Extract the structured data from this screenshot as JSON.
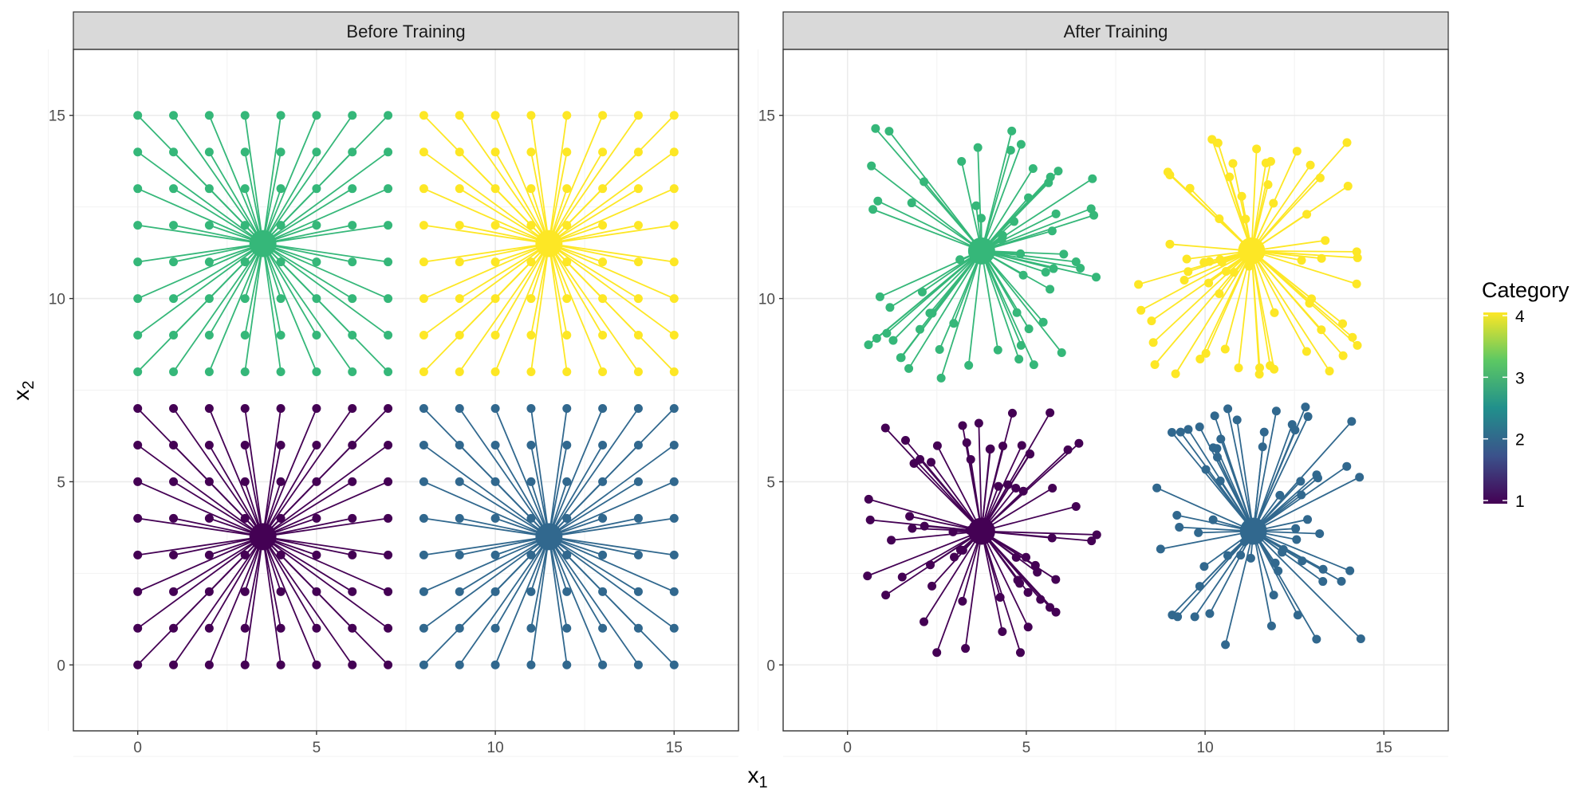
{
  "chart_data": {
    "type": "scatter",
    "facets": [
      {
        "title": "Before Training",
        "points": [
          {
            "category": 1,
            "center": [
              3.5,
              3.5
            ],
            "grid": {
              "x": [
                0,
                1,
                2,
                3,
                4,
                5,
                6,
                7
              ],
              "y": [
                0,
                1,
                2,
                3,
                4,
                5,
                6,
                7
              ]
            }
          },
          {
            "category": 2,
            "center": [
              11.5,
              3.5
            ],
            "grid": {
              "x": [
                8,
                9,
                10,
                11,
                12,
                13,
                14,
                15
              ],
              "y": [
                0,
                1,
                2,
                3,
                4,
                5,
                6,
                7
              ]
            }
          },
          {
            "category": 3,
            "center": [
              3.5,
              11.5
            ],
            "grid": {
              "x": [
                0,
                1,
                2,
                3,
                4,
                5,
                6,
                7
              ],
              "y": [
                8,
                9,
                10,
                11,
                12,
                13,
                14,
                15
              ]
            }
          },
          {
            "category": 4,
            "center": [
              11.5,
              11.5
            ],
            "grid": {
              "x": [
                8,
                9,
                10,
                11,
                12,
                13,
                14,
                15
              ],
              "y": [
                8,
                9,
                10,
                11,
                12,
                13,
                14,
                15
              ]
            }
          }
        ]
      },
      {
        "title": "After Training",
        "points": [
          {
            "category": 1,
            "center": [
              3.75,
              3.65
            ],
            "extent": {
              "x": [
                0.5,
                7.0
              ],
              "y": [
                0.3,
                6.9
              ]
            }
          },
          {
            "category": 2,
            "center": [
              11.35,
              3.65
            ],
            "extent": {
              "x": [
                8.5,
                14.5
              ],
              "y": [
                0.5,
                7.1
              ]
            }
          },
          {
            "category": 3,
            "center": [
              3.75,
              11.3
            ],
            "extent": {
              "x": [
                0.5,
                7.0
              ],
              "y": [
                7.8,
                14.7
              ]
            }
          },
          {
            "category": 4,
            "center": [
              11.3,
              11.3
            ],
            "extent": {
              "x": [
                8.1,
                14.5
              ],
              "y": [
                7.9,
                14.5
              ]
            }
          }
        ]
      }
    ],
    "xlabel_main": "x",
    "xlabel_sub": "1",
    "ylabel_main": "x",
    "ylabel_sub": "2",
    "xlim": [
      -1.8,
      16.8
    ],
    "ylim": [
      -1.8,
      16.8
    ],
    "x_ticks": [
      0,
      5,
      10,
      15
    ],
    "y_ticks": [
      0,
      5,
      10,
      15
    ],
    "legend": {
      "title": "Category",
      "position": "right",
      "values": [
        1,
        2,
        3,
        4
      ],
      "colors": {
        "1": "#440154",
        "2": "#31688E",
        "3": "#35B779",
        "4": "#FDE725"
      }
    },
    "grid": true
  }
}
